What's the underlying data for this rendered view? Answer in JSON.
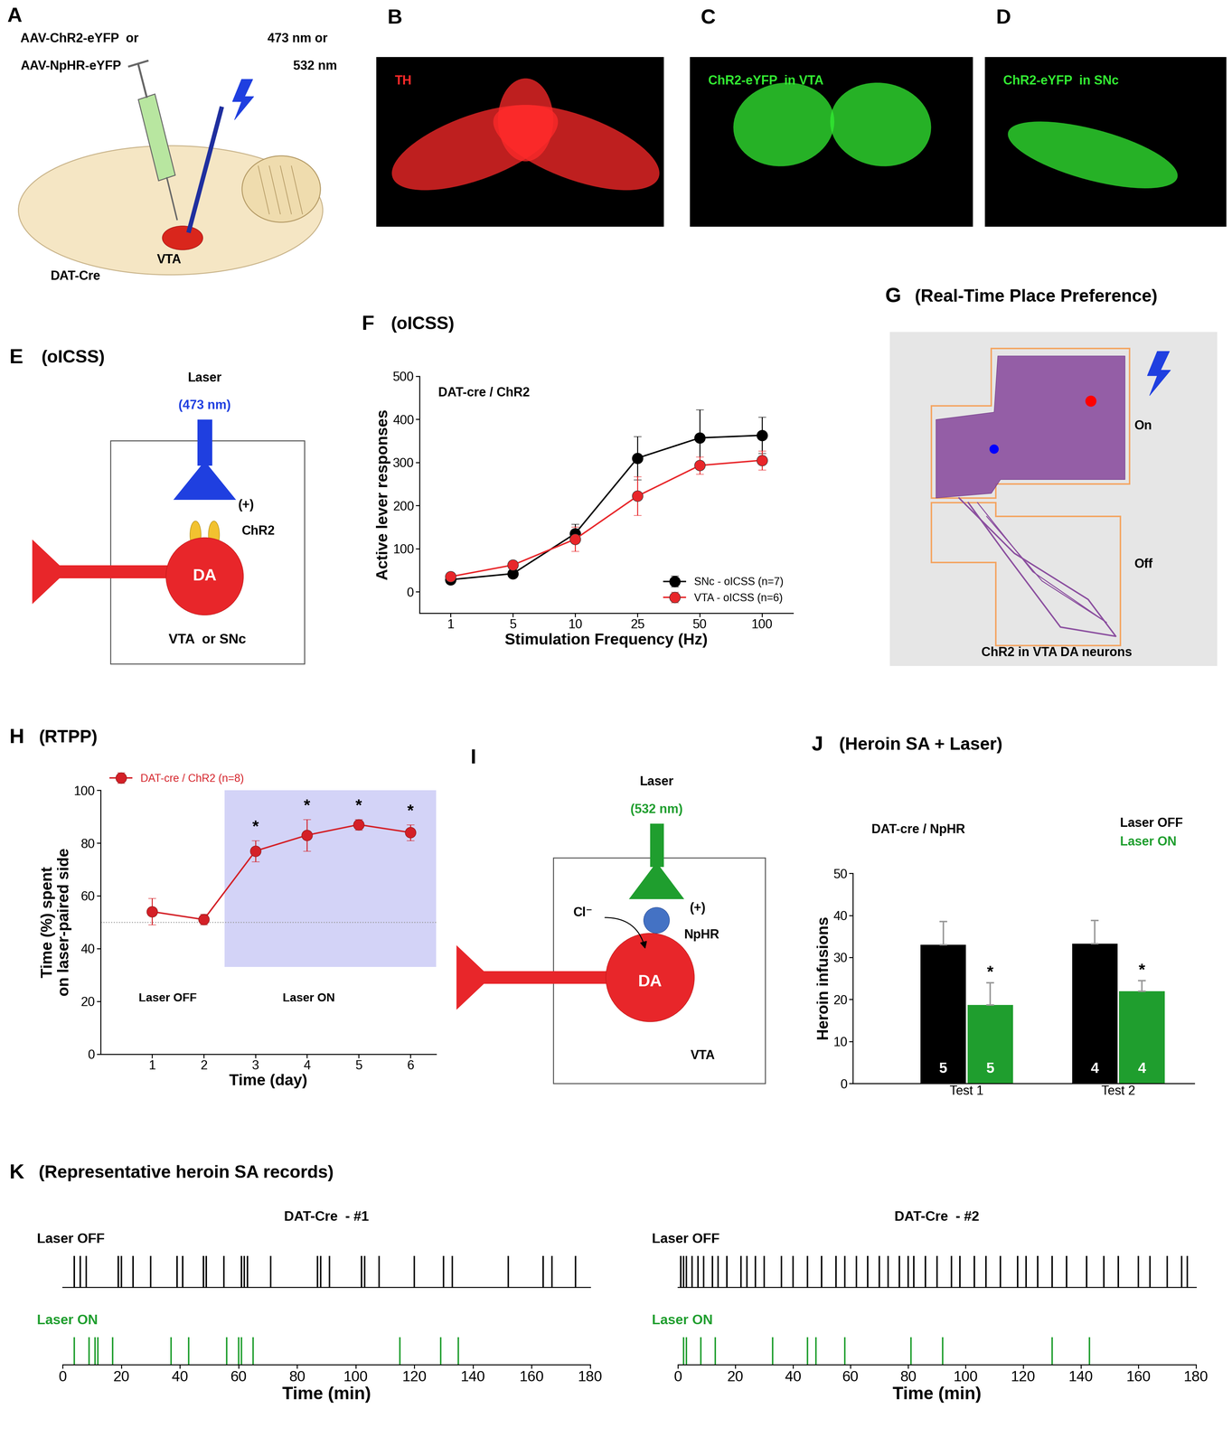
{
  "diagrams": {
    "A": {
      "letter": "A",
      "virus": [
        "AAV-ChR2-eYFP  or",
        "AAV-NpHR-eYFP"
      ],
      "laser": [
        "473 nm or",
        "532 nm"
      ],
      "region": "VTA",
      "mouse": "DAT-Cre"
    },
    "B": {
      "letter": "B",
      "label": "TH",
      "color": "#ff2a2a"
    },
    "C": {
      "letter": "C",
      "label": "ChR2-eYFP  in VTA",
      "color": "#33ee33"
    },
    "D": {
      "letter": "D",
      "label": "ChR2-eYFP  in SNc",
      "color": "#33ee33"
    },
    "E": {
      "letter": "E",
      "title": "(oICSS)",
      "laser": "Laser",
      "wavelength": "(473 nm)",
      "wavelength_color": "#1f3fe0",
      "sign": "(+)",
      "channel": "ChR2",
      "cell": "DA",
      "region": "VTA  or SNc"
    },
    "G": {
      "letter": "G",
      "title": "(Real-Time Place Preference)",
      "on": "On",
      "off": "Off",
      "caption": "ChR2 in VTA DA neurons"
    },
    "I": {
      "letter": "I",
      "laser": "Laser",
      "wavelength": "(532 nm)",
      "wavelength_color": "#1f9e2e",
      "sign": "(+)",
      "ion": "Cl⁻",
      "channel": "NpHR",
      "cell": "DA",
      "region": "VTA"
    }
  },
  "chart_data": [
    {
      "letter": "F",
      "type": "line",
      "title": "(oICSS)",
      "annotation": "DAT-cre / ChR2",
      "categories": [
        "1",
        "5",
        "10",
        "25",
        "50",
        "100"
      ],
      "x_label": "Stimulation Frequency (Hz)",
      "y_label": "Active lever responses",
      "ylim": [
        -50,
        500
      ],
      "yticks": [
        0,
        100,
        200,
        300,
        400,
        500
      ],
      "legend": "lower right",
      "marker": "o",
      "series": [
        {
          "name": "SNc - oICSS (n=7)",
          "color": "#000000",
          "values": [
            28,
            42,
            135,
            310,
            357,
            363
          ],
          "errors": [
            5,
            5,
            22,
            50,
            65,
            42
          ]
        },
        {
          "name": "VTA - oICSS (n=6)",
          "color": "#e8262a",
          "values": [
            35,
            62,
            122,
            222,
            293,
            305
          ],
          "errors": [
            8,
            8,
            28,
            45,
            20,
            22
          ]
        }
      ]
    },
    {
      "letter": "H",
      "type": "line",
      "title": "(RTPP)",
      "x": [
        1,
        2,
        3,
        4,
        5,
        6
      ],
      "xlim": [
        0,
        6.5
      ],
      "xticks": [
        1,
        2,
        3,
        4,
        5,
        6
      ],
      "ylim": [
        0,
        100
      ],
      "yticks": [
        0,
        20,
        40,
        60,
        80,
        100
      ],
      "x_label": "Time (day)",
      "y_label": "Time (%) spent\non laser-paired side",
      "reference_line": 50,
      "laser_on_span": {
        "x": [
          2.4,
          6.5
        ],
        "y": [
          33,
          100
        ]
      },
      "annotations": [
        "Laser OFF",
        "Laser ON"
      ],
      "legend": "upper left",
      "series": [
        {
          "name": "DAT-cre / ChR2 (n=8)",
          "color": "#d42027",
          "marker": "o",
          "values": [
            54,
            51,
            77,
            83,
            87,
            84
          ],
          "errors": [
            5,
            2,
            4,
            6,
            2,
            3
          ],
          "significance": [
            null,
            null,
            "*",
            "*",
            "*",
            "*"
          ]
        }
      ]
    },
    {
      "letter": "J",
      "type": "bar",
      "title": "(Heroin SA + Laser)",
      "annotation": "DAT-cre / NpHR",
      "categories": [
        "Test 1",
        "Test 2"
      ],
      "y_label": "Heroin infusions",
      "ylim": [
        0,
        50
      ],
      "yticks": [
        0,
        10,
        20,
        30,
        40,
        50
      ],
      "legend": "upper right",
      "series": [
        {
          "name": "Laser OFF",
          "color": "#000000",
          "values": [
            33,
            33.3
          ],
          "errors": [
            5.5,
            5.5
          ],
          "n": [
            5,
            4
          ],
          "significance": [
            null,
            null
          ]
        },
        {
          "name": "Laser ON",
          "color": "#1f9e2e",
          "values": [
            18.7,
            22
          ],
          "errors": [
            5.3,
            2.5
          ],
          "n": [
            5,
            4
          ],
          "significance": [
            "*",
            "*"
          ]
        }
      ]
    },
    {
      "letter": "K",
      "type": "event_raster",
      "title": "(Representative heroin SA records)",
      "x_label": "Time (min)",
      "xlim": [
        0,
        180
      ],
      "xticks": [
        0,
        20,
        40,
        60,
        80,
        100,
        120,
        140,
        160,
        180
      ],
      "records": [
        {
          "name": "DAT-Cre  - #1",
          "series": [
            {
              "name": "Laser OFF",
              "color": "#000000",
              "values": [
                4,
                6,
                8,
                19,
                20,
                24,
                30,
                39,
                41,
                48,
                49,
                55,
                61,
                62,
                63,
                71,
                87,
                88,
                91,
                102,
                103,
                108,
                120,
                130,
                133,
                152,
                164,
                167,
                175
              ]
            },
            {
              "name": "Laser ON",
              "color": "#1f9e2e",
              "values": [
                4,
                9,
                11,
                12,
                17,
                37,
                43,
                56,
                60,
                61,
                65,
                115,
                129,
                135
              ]
            }
          ]
        },
        {
          "name": "DAT-Cre  - #2",
          "series": [
            {
              "name": "Laser OFF",
              "color": "#000000",
              "values": [
                1,
                2,
                3,
                5,
                7,
                9,
                12,
                14,
                17,
                22,
                24,
                27,
                30,
                36,
                40,
                45,
                50,
                55,
                58,
                62,
                66,
                70,
                73,
                77,
                80,
                82,
                86,
                90,
                95,
                98,
                103,
                107,
                112,
                118,
                121,
                125,
                130,
                135,
                142,
                148,
                153,
                160,
                164,
                170,
                175,
                177
              ]
            },
            {
              "name": "Laser ON",
              "color": "#1f9e2e",
              "values": [
                2,
                3,
                8,
                13,
                33,
                45,
                48,
                58,
                81,
                92,
                130,
                143
              ]
            }
          ]
        }
      ]
    }
  ]
}
